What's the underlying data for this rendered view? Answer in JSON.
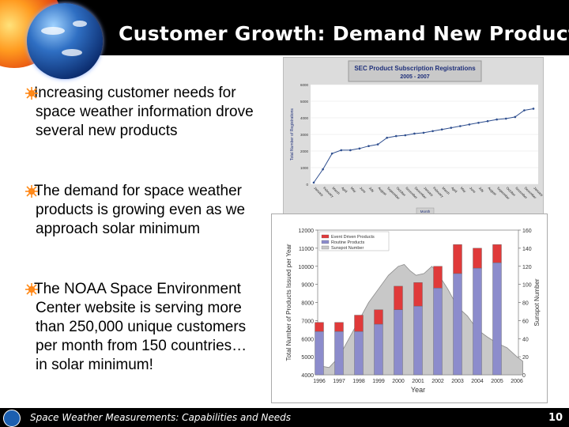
{
  "slide": {
    "title": "Customer Growth: Demand New Products",
    "bullets": [
      "Increasing customer needs for space weather information drove several new products",
      "The demand for space weather products is growing even as we approach solar minimum",
      "The NOAA Space Environment Center website is serving more than 250,000 unique customers per month from 150 countries…in solar minimum!"
    ],
    "footer": "Space Weather Measurements: Capabilities and Needs",
    "page_number": "10"
  },
  "chart_data": [
    {
      "type": "line",
      "title": "SEC Product Subscription Registrations",
      "subtitle": "2005 - 2007",
      "ylabel": "Total Number of Registrations",
      "xlabel": "Month",
      "ylim": [
        0,
        6000
      ],
      "yticks": [
        "0",
        "1000",
        "2000",
        "3000",
        "4000",
        "5000",
        "6000"
      ],
      "categories": [
        "January",
        "February",
        "March",
        "April",
        "May",
        "June",
        "July",
        "August",
        "September",
        "October",
        "November",
        "December",
        "January",
        "February",
        "March",
        "April",
        "May",
        "June",
        "July",
        "August",
        "September",
        "October",
        "November",
        "December",
        "January"
      ],
      "values": [
        100,
        900,
        1850,
        2050,
        2050,
        2150,
        2300,
        2400,
        2800,
        2900,
        2950,
        3050,
        3100,
        3200,
        3300,
        3400,
        3500,
        3600,
        3700,
        3800,
        3900,
        3950,
        4050,
        4450,
        4550
      ],
      "grid": true,
      "line_color": "#2f4f8f",
      "background": "#ffffff"
    },
    {
      "type": "bar",
      "stacked": true,
      "xlabel": "Year",
      "ylabel": "Total Number of Products Issued per Year",
      "y2label": "Sunspot Number",
      "categories": [
        "1996",
        "1997",
        "1998",
        "1999",
        "2000",
        "2001",
        "2002",
        "2003",
        "2004",
        "2005",
        "2006"
      ],
      "ylim": [
        4000,
        12000
      ],
      "yticks": [
        "4000",
        "5000",
        "6000",
        "7000",
        "8000",
        "9000",
        "10000",
        "11000",
        "12000"
      ],
      "y2lim": [
        0,
        160
      ],
      "y2ticks": [
        "0",
        "20",
        "40",
        "60",
        "80",
        "100",
        "120",
        "140",
        "160"
      ],
      "series": [
        {
          "name": "Routine Products",
          "color": "#8c8ccc",
          "values": [
            6400,
            6400,
            6400,
            6800,
            7600,
            7800,
            8800,
            9600,
            9900,
            10200,
            null
          ]
        },
        {
          "name": "Event Driven Products",
          "color": "#e03a3a",
          "values": [
            500,
            500,
            900,
            800,
            1300,
            1300,
            1200,
            1600,
            1100,
            1000,
            null
          ]
        }
      ],
      "sunspot_series": {
        "name": "Sunspot Number",
        "color": "#c8c8c8",
        "x": [
          1996.0,
          1996.5,
          1997.0,
          1997.5,
          1998.0,
          1998.5,
          1999.0,
          1999.5,
          2000.0,
          2000.3,
          2000.6,
          2000.9,
          2001.3,
          2001.7,
          2002.0,
          2002.5,
          2003.0,
          2003.5,
          2004.0,
          2004.5,
          2005.0,
          2005.5,
          2006.0,
          2006.3
        ],
        "values": [
          10,
          8,
          20,
          40,
          60,
          80,
          95,
          110,
          120,
          122,
          115,
          110,
          112,
          120,
          112,
          95,
          75,
          65,
          50,
          42,
          35,
          30,
          20,
          15
        ]
      }
    }
  ]
}
